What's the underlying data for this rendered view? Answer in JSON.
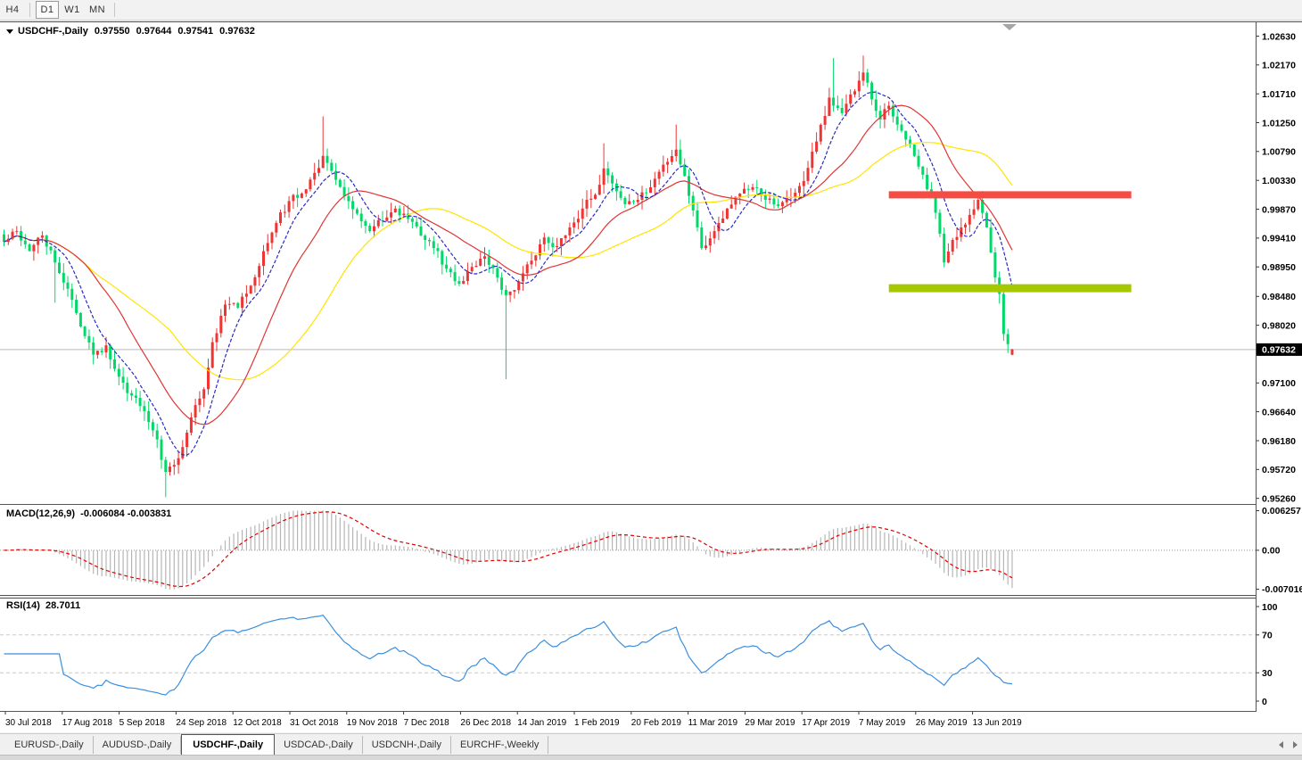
{
  "toolbar": {
    "buttons": [
      {
        "label": "H4",
        "active": false
      },
      {
        "label": "D1",
        "active": true
      },
      {
        "label": "W1",
        "active": false
      },
      {
        "label": "MN",
        "active": false
      }
    ]
  },
  "chart": {
    "title_symbol": "USDCHF-,Daily",
    "ohlc": {
      "open": "0.97550",
      "high": "0.97644",
      "low": "0.97541",
      "close": "0.97632"
    },
    "price_tag": "0.97632"
  },
  "indicators": {
    "macd": {
      "name": "MACD(12,26,9)",
      "values": "-0.006084 -0.003831",
      "scale_top": "0.006257",
      "scale_zero": "0.00",
      "scale_bottom": "-0.007016"
    },
    "rsi": {
      "name": "RSI(14)",
      "value": "28.7011",
      "scale": [
        "100",
        "70",
        "30",
        "0"
      ]
    }
  },
  "tabs": {
    "items": [
      {
        "label": "EURUSD-,Daily"
      },
      {
        "label": "AUDUSD-,Daily"
      },
      {
        "label": "USDCHF-,Daily"
      },
      {
        "label": "USDCAD-,Daily"
      },
      {
        "label": "USDCNH-,Daily"
      },
      {
        "label": "EURCHF-,Weekly"
      }
    ],
    "active_index": 2
  },
  "chart_data": {
    "type": "candlestick",
    "symbol": "USDCHF",
    "timeframe": "Daily",
    "last_ohlc": {
      "open": 0.9755,
      "high": 0.97644,
      "low": 0.97541,
      "close": 0.97632
    },
    "current_price": 0.97632,
    "price_range": [
      0.9517,
      1.0285
    ],
    "price_axis_ticks": [
      "1.02630",
      "1.02170",
      "1.01710",
      "1.01250",
      "1.00790",
      "1.00330",
      "0.99870",
      "0.99410",
      "0.98950",
      "0.98480",
      "0.98020",
      "0.97100",
      "0.96640",
      "0.96180",
      "0.95720",
      "0.95260"
    ],
    "date_labels": [
      "30 Jul 2018",
      "17 Aug 2018",
      "5 Sep 2018",
      "24 Sep 2018",
      "12 Oct 2018",
      "31 Oct 2018",
      "19 Nov 2018",
      "7 Dec 2018",
      "26 Dec 2018",
      "14 Jan 2019",
      "1 Feb 2019",
      "20 Feb 2019",
      "11 Mar 2019",
      "29 Mar 2019",
      "17 Apr 2019",
      "7 May 2019",
      "26 May 2019",
      "13 Jun 2019"
    ],
    "candle_count": 238,
    "close_anchors": [
      [
        0,
        0.9935
      ],
      [
        3,
        0.9952
      ],
      [
        6,
        0.992
      ],
      [
        9,
        0.9945
      ],
      [
        12,
        0.9902
      ],
      [
        15,
        0.986
      ],
      [
        18,
        0.98
      ],
      [
        21,
        0.9755
      ],
      [
        24,
        0.977
      ],
      [
        27,
        0.972
      ],
      [
        30,
        0.969
      ],
      [
        33,
        0.9665
      ],
      [
        36,
        0.962
      ],
      [
        38,
        0.9568
      ],
      [
        41,
        0.959
      ],
      [
        44,
        0.9655
      ],
      [
        47,
        0.97
      ],
      [
        49,
        0.9775
      ],
      [
        52,
        0.9835
      ],
      [
        55,
        0.983
      ],
      [
        58,
        0.9865
      ],
      [
        61,
        0.992
      ],
      [
        64,
        0.9965
      ],
      [
        67,
        1.0
      ],
      [
        70,
        1.0012
      ],
      [
        73,
        1.0045
      ],
      [
        75,
        1.0072
      ],
      [
        77,
        1.0048
      ],
      [
        80,
        1.0008
      ],
      [
        83,
        0.998
      ],
      [
        86,
        0.9952
      ],
      [
        89,
        0.9968
      ],
      [
        92,
        0.9988
      ],
      [
        95,
        0.9972
      ],
      [
        98,
        0.9945
      ],
      [
        101,
        0.9925
      ],
      [
        104,
        0.9892
      ],
      [
        107,
        0.9868
      ],
      [
        110,
        0.9895
      ],
      [
        113,
        0.9912
      ],
      [
        116,
        0.9878
      ],
      [
        118,
        0.985
      ],
      [
        121,
        0.9872
      ],
      [
        124,
        0.9905
      ],
      [
        127,
        0.9942
      ],
      [
        130,
        0.9928
      ],
      [
        133,
        0.9958
      ],
      [
        136,
        0.9988
      ],
      [
        139,
        1.001
      ],
      [
        141,
        1.0052
      ],
      [
        143,
        1.0028
      ],
      [
        146,
        0.9995
      ],
      [
        149,
        1.0002
      ],
      [
        152,
        1.0022
      ],
      [
        155,
        1.0058
      ],
      [
        158,
        1.0082
      ],
      [
        160,
        1.004
      ],
      [
        162,
        0.9985
      ],
      [
        164,
        0.9925
      ],
      [
        167,
        0.9952
      ],
      [
        170,
        0.9988
      ],
      [
        173,
        1.0012
      ],
      [
        176,
        1.0022
      ],
      [
        179,
        1.0002
      ],
      [
        182,
        0.9992
      ],
      [
        185,
        1.0006
      ],
      [
        188,
        1.0032
      ],
      [
        191,
        1.0095
      ],
      [
        194,
        1.0165
      ],
      [
        197,
        1.014
      ],
      [
        200,
        1.0175
      ],
      [
        202,
        1.0205
      ],
      [
        204,
        1.0162
      ],
      [
        206,
        1.013
      ],
      [
        208,
        1.0152
      ],
      [
        210,
        1.0122
      ],
      [
        212,
        1.0098
      ],
      [
        214,
        1.0072
      ],
      [
        216,
        1.0042
      ],
      [
        218,
        1.0008
      ],
      [
        220,
        0.9948
      ],
      [
        221,
        0.9902
      ],
      [
        223,
        0.9938
      ],
      [
        225,
        0.9958
      ],
      [
        227,
        0.9978
      ],
      [
        229,
        1.0002
      ],
      [
        231,
        0.9958
      ],
      [
        232,
        0.9918
      ],
      [
        233,
        0.9878
      ],
      [
        234,
        0.9852
      ],
      [
        235,
        0.9788
      ],
      [
        236,
        0.9772
      ],
      [
        237,
        0.97632
      ]
    ],
    "wick_overrides": {
      "12": {
        "l": 0.9838
      },
      "38": {
        "l": 0.9528
      },
      "75": {
        "h": 1.0135
      },
      "118": {
        "l": 0.9716
      },
      "141": {
        "h": 1.0092
      },
      "158": {
        "h": 1.0122
      },
      "195": {
        "h": 1.0228
      },
      "202": {
        "h": 1.0232
      },
      "230": {
        "h": 1.0016
      }
    },
    "moving_averages": [
      {
        "period": 40,
        "color": "#ffe400",
        "style": "solid"
      },
      {
        "period": 20,
        "color": "#e03535",
        "style": "solid"
      },
      {
        "period": 8,
        "color": "#2a2ac4",
        "style": "dashed"
      }
    ],
    "bands": [
      {
        "name": "resistance",
        "price": 1.001,
        "i1": 208,
        "i2": 265,
        "thickness": 8,
        "color": "#f54b42"
      },
      {
        "name": "support",
        "price": 0.9861,
        "i1": 208,
        "i2": 265,
        "thickness": 9,
        "color": "#a6c800"
      }
    ],
    "macd": {
      "fast": 12,
      "slow": 26,
      "signal": 9,
      "current_macd": -0.006084,
      "current_signal": -0.003831,
      "scale_max": 0.006257,
      "scale_min": -0.007016
    },
    "rsi": {
      "period": 14,
      "current": 28.7011,
      "levels": [
        70,
        30
      ],
      "scale_max": 100,
      "scale_min": 0
    },
    "colors": {
      "bull": "#ef3434",
      "bear": "#00d96a",
      "macd_hist": "#b6b6b6",
      "macd_signal": "#e00000",
      "rsi_line": "#3a8ede",
      "price_line": "#b9b9b9",
      "axis_text": "#000000"
    }
  }
}
